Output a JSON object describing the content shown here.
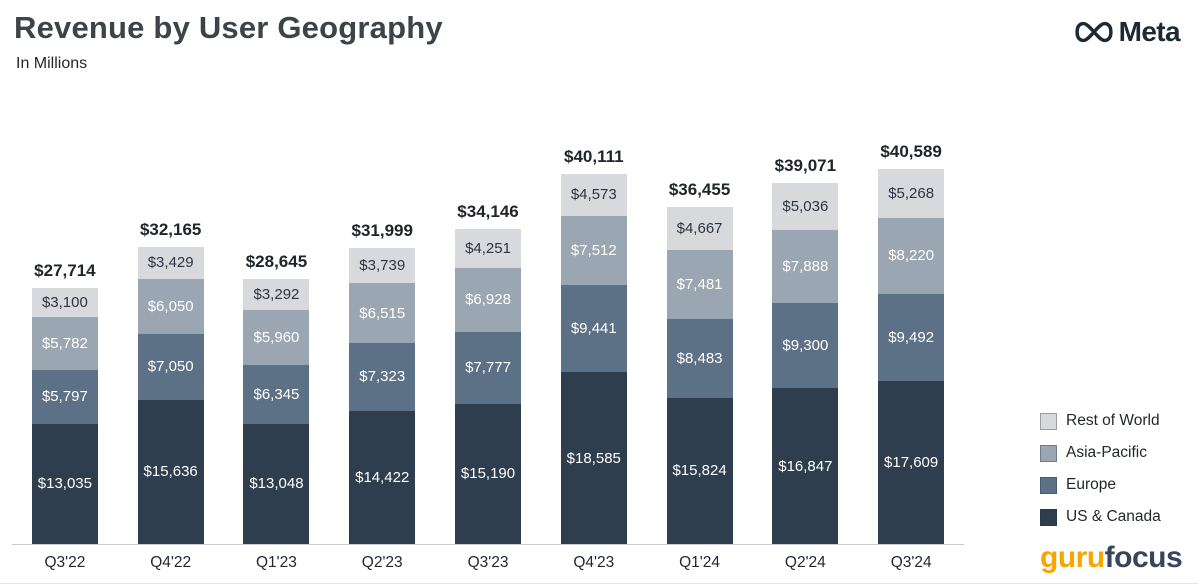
{
  "header": {
    "title": "Revenue by User Geography",
    "subtitle": "In Millions",
    "brand": "Meta"
  },
  "footer": {
    "logo_part1": "guru",
    "logo_part2": "focus"
  },
  "chart_data": {
    "type": "bar",
    "stacked": true,
    "title": "Revenue by User Geography",
    "subtitle": "In Millions",
    "value_prefix": "$",
    "categories": [
      "Q3'22",
      "Q4'22",
      "Q1'23",
      "Q2'23",
      "Q3'23",
      "Q4'23",
      "Q1'24",
      "Q2'24",
      "Q3'24"
    ],
    "totals": [
      27714,
      32165,
      28645,
      31999,
      34146,
      40111,
      36455,
      39071,
      40589
    ],
    "series": [
      {
        "name": "US & Canada",
        "color": "#2e3e4e",
        "label_color": "#ffffff",
        "values": [
          13035,
          15636,
          13048,
          14422,
          15190,
          18585,
          15824,
          16847,
          17609
        ]
      },
      {
        "name": "Europe",
        "color": "#5d7186",
        "label_color": "#ffffff",
        "values": [
          5797,
          7050,
          6345,
          7323,
          7777,
          9441,
          8483,
          9300,
          9492
        ]
      },
      {
        "name": "Asia-Pacific",
        "color": "#9aa6b2",
        "label_color": "#ffffff",
        "values": [
          5782,
          6050,
          5960,
          6515,
          6928,
          7512,
          7481,
          7888,
          8220
        ]
      },
      {
        "name": "Rest of World",
        "color": "#d7d9dd",
        "label_color": "#2e3440",
        "values": [
          3100,
          3429,
          3292,
          3739,
          4251,
          4573,
          4667,
          5036,
          5268
        ]
      }
    ],
    "legend_order_top_to_bottom": [
      "Rest of World",
      "Asia-Pacific",
      "Europe",
      "US & Canada"
    ],
    "legend_position": "right",
    "grid": false,
    "ylim": [
      0,
      42000
    ]
  }
}
